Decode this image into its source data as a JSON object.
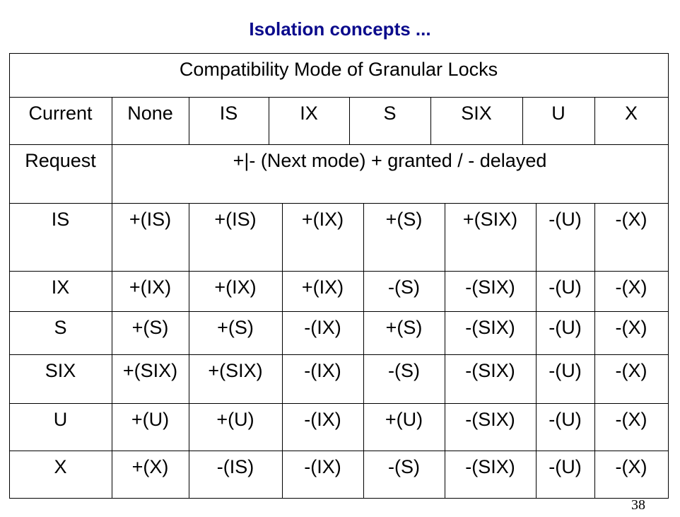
{
  "slide": {
    "title": "Isolation concepts ...",
    "page_number": "38"
  },
  "table": {
    "caption": "Compatibility Mode of Granular Locks",
    "current_label": "Current",
    "current_modes": [
      "None",
      "IS",
      "IX",
      "S",
      "SIX",
      "U",
      "X"
    ],
    "request_label": "Request",
    "request_legend": "+|- (Next mode) + granted / - delayed",
    "rows": [
      {
        "mode": "IS",
        "cells": [
          "+(IS)",
          "+(IS)",
          "+(IX)",
          "+(S)",
          "+(SIX)",
          "-(U)",
          "-(X)"
        ]
      },
      {
        "mode": "IX",
        "cells": [
          "+(IX)",
          "+(IX)",
          "+(IX)",
          "-(S)",
          "-(SIX)",
          "-(U)",
          "-(X)"
        ]
      },
      {
        "mode": "S",
        "cells": [
          "+(S)",
          "+(S)",
          "-(IX)",
          "+(S)",
          "-(SIX)",
          "-(U)",
          "-(X)"
        ]
      },
      {
        "mode": "SIX",
        "cells": [
          "+(SIX)",
          "+(SIX)",
          "-(IX)",
          "-(S)",
          "-(SIX)",
          "-(U)",
          "-(X)"
        ]
      },
      {
        "mode": "U",
        "cells": [
          "+(U)",
          "+(U)",
          "-(IX)",
          "+(U)",
          "-(SIX)",
          "-(U)",
          "-(X)"
        ]
      },
      {
        "mode": "X",
        "cells": [
          "+(X)",
          "-(IS)",
          "-(IX)",
          "-(S)",
          "-(SIX)",
          "-(U)",
          "-(X)"
        ]
      }
    ]
  }
}
